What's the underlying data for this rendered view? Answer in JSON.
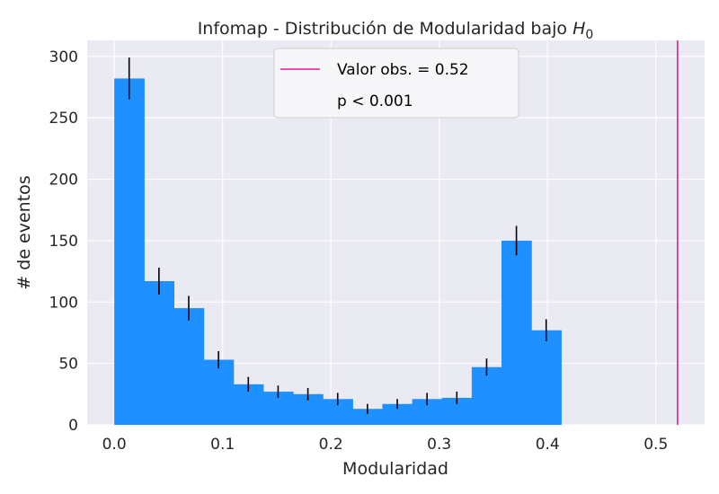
{
  "chart_data": {
    "type": "bar",
    "title_prefix": "Infomap - Distribución de Modularidad bajo ",
    "title_math_base": "H",
    "title_math_sub": "0",
    "xlabel": "Modularidad",
    "ylabel": "# de eventos",
    "xlim": [
      -0.025,
      0.545
    ],
    "ylim": [
      0,
      313
    ],
    "xticks": [
      "0.0",
      "0.1",
      "0.2",
      "0.3",
      "0.4",
      "0.5"
    ],
    "yticks": [
      "0",
      "50",
      "100",
      "150",
      "200",
      "250",
      "300"
    ],
    "grid": true,
    "legend_position": "top-center",
    "bin_edges": [
      0.0,
      0.0275,
      0.055,
      0.0825,
      0.11,
      0.1375,
      0.165,
      0.1925,
      0.22,
      0.2475,
      0.275,
      0.3025,
      0.33,
      0.3575,
      0.385,
      0.4125
    ],
    "counts": [
      282,
      117,
      95,
      53,
      33,
      27,
      25,
      21,
      13,
      17,
      21,
      22,
      47,
      150,
      77
    ],
    "errors": [
      17,
      11,
      10,
      7,
      6,
      5,
      5,
      5,
      4,
      4,
      5,
      5,
      7,
      12,
      9
    ],
    "observed_value": 0.52,
    "legend": {
      "line_label": "Valor obs. = 0.52",
      "p_label": "p < 0.001"
    },
    "colors": {
      "bars": "#1e90ff",
      "observed_line": "#e8179c",
      "errorbars": "#000000",
      "plot_background": "#eaeaf2",
      "grid": "#ffffff"
    }
  }
}
